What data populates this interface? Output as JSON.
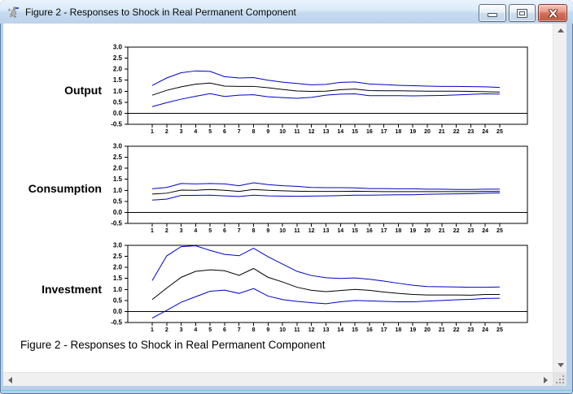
{
  "window": {
    "title": "Figure 2 - Responses to Shock in Real Permanent Component",
    "icons": {
      "app": "rats-kangaroo-icon",
      "minimize": "minimize-icon",
      "maximize": "maximize-icon",
      "close": "close-icon",
      "scroll_up": "triangle-up",
      "scroll_down": "triangle-down",
      "scroll_left": "triangle-left",
      "scroll_right": "triangle-right",
      "resize": "grip-dots"
    }
  },
  "caption": "Figure 2 - Responses to Shock in Real Permanent Component",
  "colors": {
    "band_line": "#0000cc",
    "response_line": "#000000",
    "window_border": "#b9d0ea",
    "titlebar_top": "#eaf3fc",
    "titlebar_bottom": "#bed3eb",
    "close_button": "#c2584a",
    "scroll_track": "#f0f0f0"
  },
  "chart_data": [
    {
      "type": "line",
      "title": "Output",
      "xlabel": "",
      "ylabel": "",
      "ylim": [
        -0.5,
        3.0
      ],
      "grid": false,
      "zero_line": true,
      "legend": "none",
      "yticks": [
        "3.0",
        "2.5",
        "2.0",
        "1.5",
        "1.0",
        "0.5",
        "0.0",
        "-0.5"
      ],
      "x": [
        1,
        2,
        3,
        4,
        5,
        6,
        7,
        8,
        9,
        10,
        11,
        12,
        13,
        14,
        15,
        16,
        17,
        18,
        19,
        20,
        21,
        22,
        23,
        24,
        25
      ],
      "series": [
        {
          "name": "upper-confidence-band",
          "color": "#0000cc",
          "values": [
            1.26,
            1.6,
            1.84,
            1.92,
            1.9,
            1.66,
            1.6,
            1.62,
            1.5,
            1.41,
            1.35,
            1.29,
            1.31,
            1.4,
            1.42,
            1.33,
            1.3,
            1.27,
            1.25,
            1.23,
            1.22,
            1.22,
            1.21,
            1.2,
            1.17
          ]
        },
        {
          "name": "point-estimate",
          "color": "#000000",
          "values": [
            0.82,
            1.04,
            1.2,
            1.32,
            1.37,
            1.23,
            1.22,
            1.22,
            1.16,
            1.08,
            1.01,
            0.99,
            1.0,
            1.07,
            1.1,
            1.03,
            1.02,
            1.02,
            1.01,
            1.0,
            1.0,
            1.0,
            0.99,
            0.98,
            0.96
          ]
        },
        {
          "name": "lower-confidence-band",
          "color": "#0000cc",
          "values": [
            0.3,
            0.48,
            0.64,
            0.77,
            0.89,
            0.76,
            0.82,
            0.84,
            0.75,
            0.71,
            0.68,
            0.72,
            0.82,
            0.87,
            0.88,
            0.8,
            0.8,
            0.8,
            0.79,
            0.8,
            0.81,
            0.83,
            0.86,
            0.88,
            0.87
          ]
        }
      ]
    },
    {
      "type": "line",
      "title": "Consumption",
      "xlabel": "",
      "ylabel": "",
      "ylim": [
        -0.5,
        3.0
      ],
      "grid": false,
      "zero_line": true,
      "legend": "none",
      "yticks": [
        "3.0",
        "2.5",
        "2.0",
        "1.5",
        "1.0",
        "0.5",
        "0.0",
        "-0.5"
      ],
      "x": [
        1,
        2,
        3,
        4,
        5,
        6,
        7,
        8,
        9,
        10,
        11,
        12,
        13,
        14,
        15,
        16,
        17,
        18,
        19,
        20,
        21,
        22,
        23,
        24,
        25
      ],
      "series": [
        {
          "name": "upper-confidence-band",
          "color": "#0000cc",
          "values": [
            1.07,
            1.13,
            1.31,
            1.29,
            1.31,
            1.29,
            1.21,
            1.34,
            1.26,
            1.21,
            1.18,
            1.13,
            1.12,
            1.12,
            1.11,
            1.08,
            1.08,
            1.07,
            1.07,
            1.05,
            1.05,
            1.04,
            1.04,
            1.05,
            1.05
          ]
        },
        {
          "name": "point-estimate",
          "color": "#000000",
          "values": [
            0.83,
            0.87,
            1.01,
            1.0,
            1.04,
            1.0,
            0.95,
            1.04,
            1.0,
            0.98,
            0.96,
            0.95,
            0.95,
            0.95,
            0.96,
            0.95,
            0.94,
            0.94,
            0.94,
            0.94,
            0.94,
            0.94,
            0.94,
            0.95,
            0.95
          ]
        },
        {
          "name": "lower-confidence-band",
          "color": "#0000cc",
          "values": [
            0.56,
            0.6,
            0.77,
            0.77,
            0.78,
            0.75,
            0.72,
            0.78,
            0.75,
            0.74,
            0.73,
            0.74,
            0.75,
            0.76,
            0.78,
            0.78,
            0.79,
            0.8,
            0.8,
            0.82,
            0.83,
            0.84,
            0.85,
            0.87,
            0.88
          ]
        }
      ]
    },
    {
      "type": "line",
      "title": "Investment",
      "xlabel": "",
      "ylabel": "",
      "ylim": [
        -0.5,
        3.0
      ],
      "grid": false,
      "zero_line": true,
      "legend": "none",
      "yticks": [
        "3.0",
        "2.5",
        "2.0",
        "1.5",
        "1.0",
        "0.5",
        "0.0",
        "-0.5"
      ],
      "x": [
        1,
        2,
        3,
        4,
        5,
        6,
        7,
        8,
        9,
        10,
        11,
        12,
        13,
        14,
        15,
        16,
        17,
        18,
        19,
        20,
        21,
        22,
        23,
        24,
        25
      ],
      "series": [
        {
          "name": "upper-confidence-band",
          "color": "#0000cc",
          "values": [
            1.4,
            2.52,
            2.94,
            2.98,
            2.77,
            2.59,
            2.53,
            2.87,
            2.48,
            2.15,
            1.82,
            1.63,
            1.53,
            1.5,
            1.52,
            1.46,
            1.38,
            1.28,
            1.19,
            1.13,
            1.12,
            1.11,
            1.1,
            1.1,
            1.11
          ]
        },
        {
          "name": "point-estimate",
          "color": "#000000",
          "values": [
            0.54,
            1.06,
            1.55,
            1.82,
            1.89,
            1.85,
            1.64,
            1.95,
            1.55,
            1.34,
            1.1,
            0.96,
            0.9,
            0.95,
            1.0,
            0.96,
            0.88,
            0.82,
            0.77,
            0.75,
            0.75,
            0.75,
            0.74,
            0.77,
            0.77
          ]
        },
        {
          "name": "lower-confidence-band",
          "color": "#0000cc",
          "values": [
            -0.3,
            0.05,
            0.42,
            0.67,
            0.92,
            0.97,
            0.82,
            1.04,
            0.7,
            0.54,
            0.46,
            0.4,
            0.35,
            0.44,
            0.5,
            0.48,
            0.46,
            0.44,
            0.44,
            0.47,
            0.5,
            0.53,
            0.55,
            0.59,
            0.6
          ]
        }
      ]
    }
  ]
}
